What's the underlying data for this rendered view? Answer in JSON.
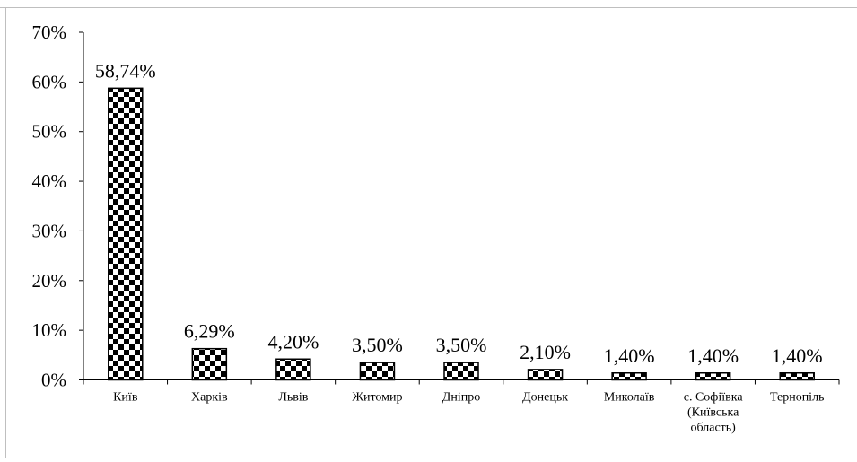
{
  "chart_data": {
    "type": "bar",
    "title": "",
    "xlabel": "",
    "ylabel": "",
    "categories": [
      "Київ",
      "Харків",
      "Львів",
      "Житомир",
      "Дніпро",
      "Донецьк",
      "Миколаїв",
      "с. Софіївка (Київська область)",
      "Тернопіль"
    ],
    "category_lines": [
      [
        "Київ"
      ],
      [
        "Харків"
      ],
      [
        "Львів"
      ],
      [
        "Житомир"
      ],
      [
        "Дніпро"
      ],
      [
        "Донецьк"
      ],
      [
        "Миколаїв"
      ],
      [
        "с. Софіївка",
        "(Київська",
        "область)"
      ],
      [
        "Тернопіль"
      ]
    ],
    "values": [
      58.74,
      6.29,
      4.2,
      3.5,
      3.5,
      2.1,
      1.4,
      1.4,
      1.4
    ],
    "data_labels": [
      "58,74%",
      "6,29%",
      "4,20%",
      "3,50%",
      "3,50%",
      "2,10%",
      "1,40%",
      "1,40%",
      "1,40%"
    ],
    "ylim": [
      0,
      70
    ],
    "yticks": [
      0,
      10,
      20,
      30,
      40,
      50,
      60,
      70
    ],
    "ytick_labels": [
      "0%",
      "10%",
      "20%",
      "30%",
      "40%",
      "50%",
      "60%",
      "70%"
    ],
    "grid": false,
    "legend": "none",
    "bar_pattern": "checkerboard",
    "colors": {
      "bar_fill_dark": "#000000",
      "bar_fill_light": "#ffffff",
      "axis": "#000000",
      "frame": "#bfbfbf"
    }
  }
}
